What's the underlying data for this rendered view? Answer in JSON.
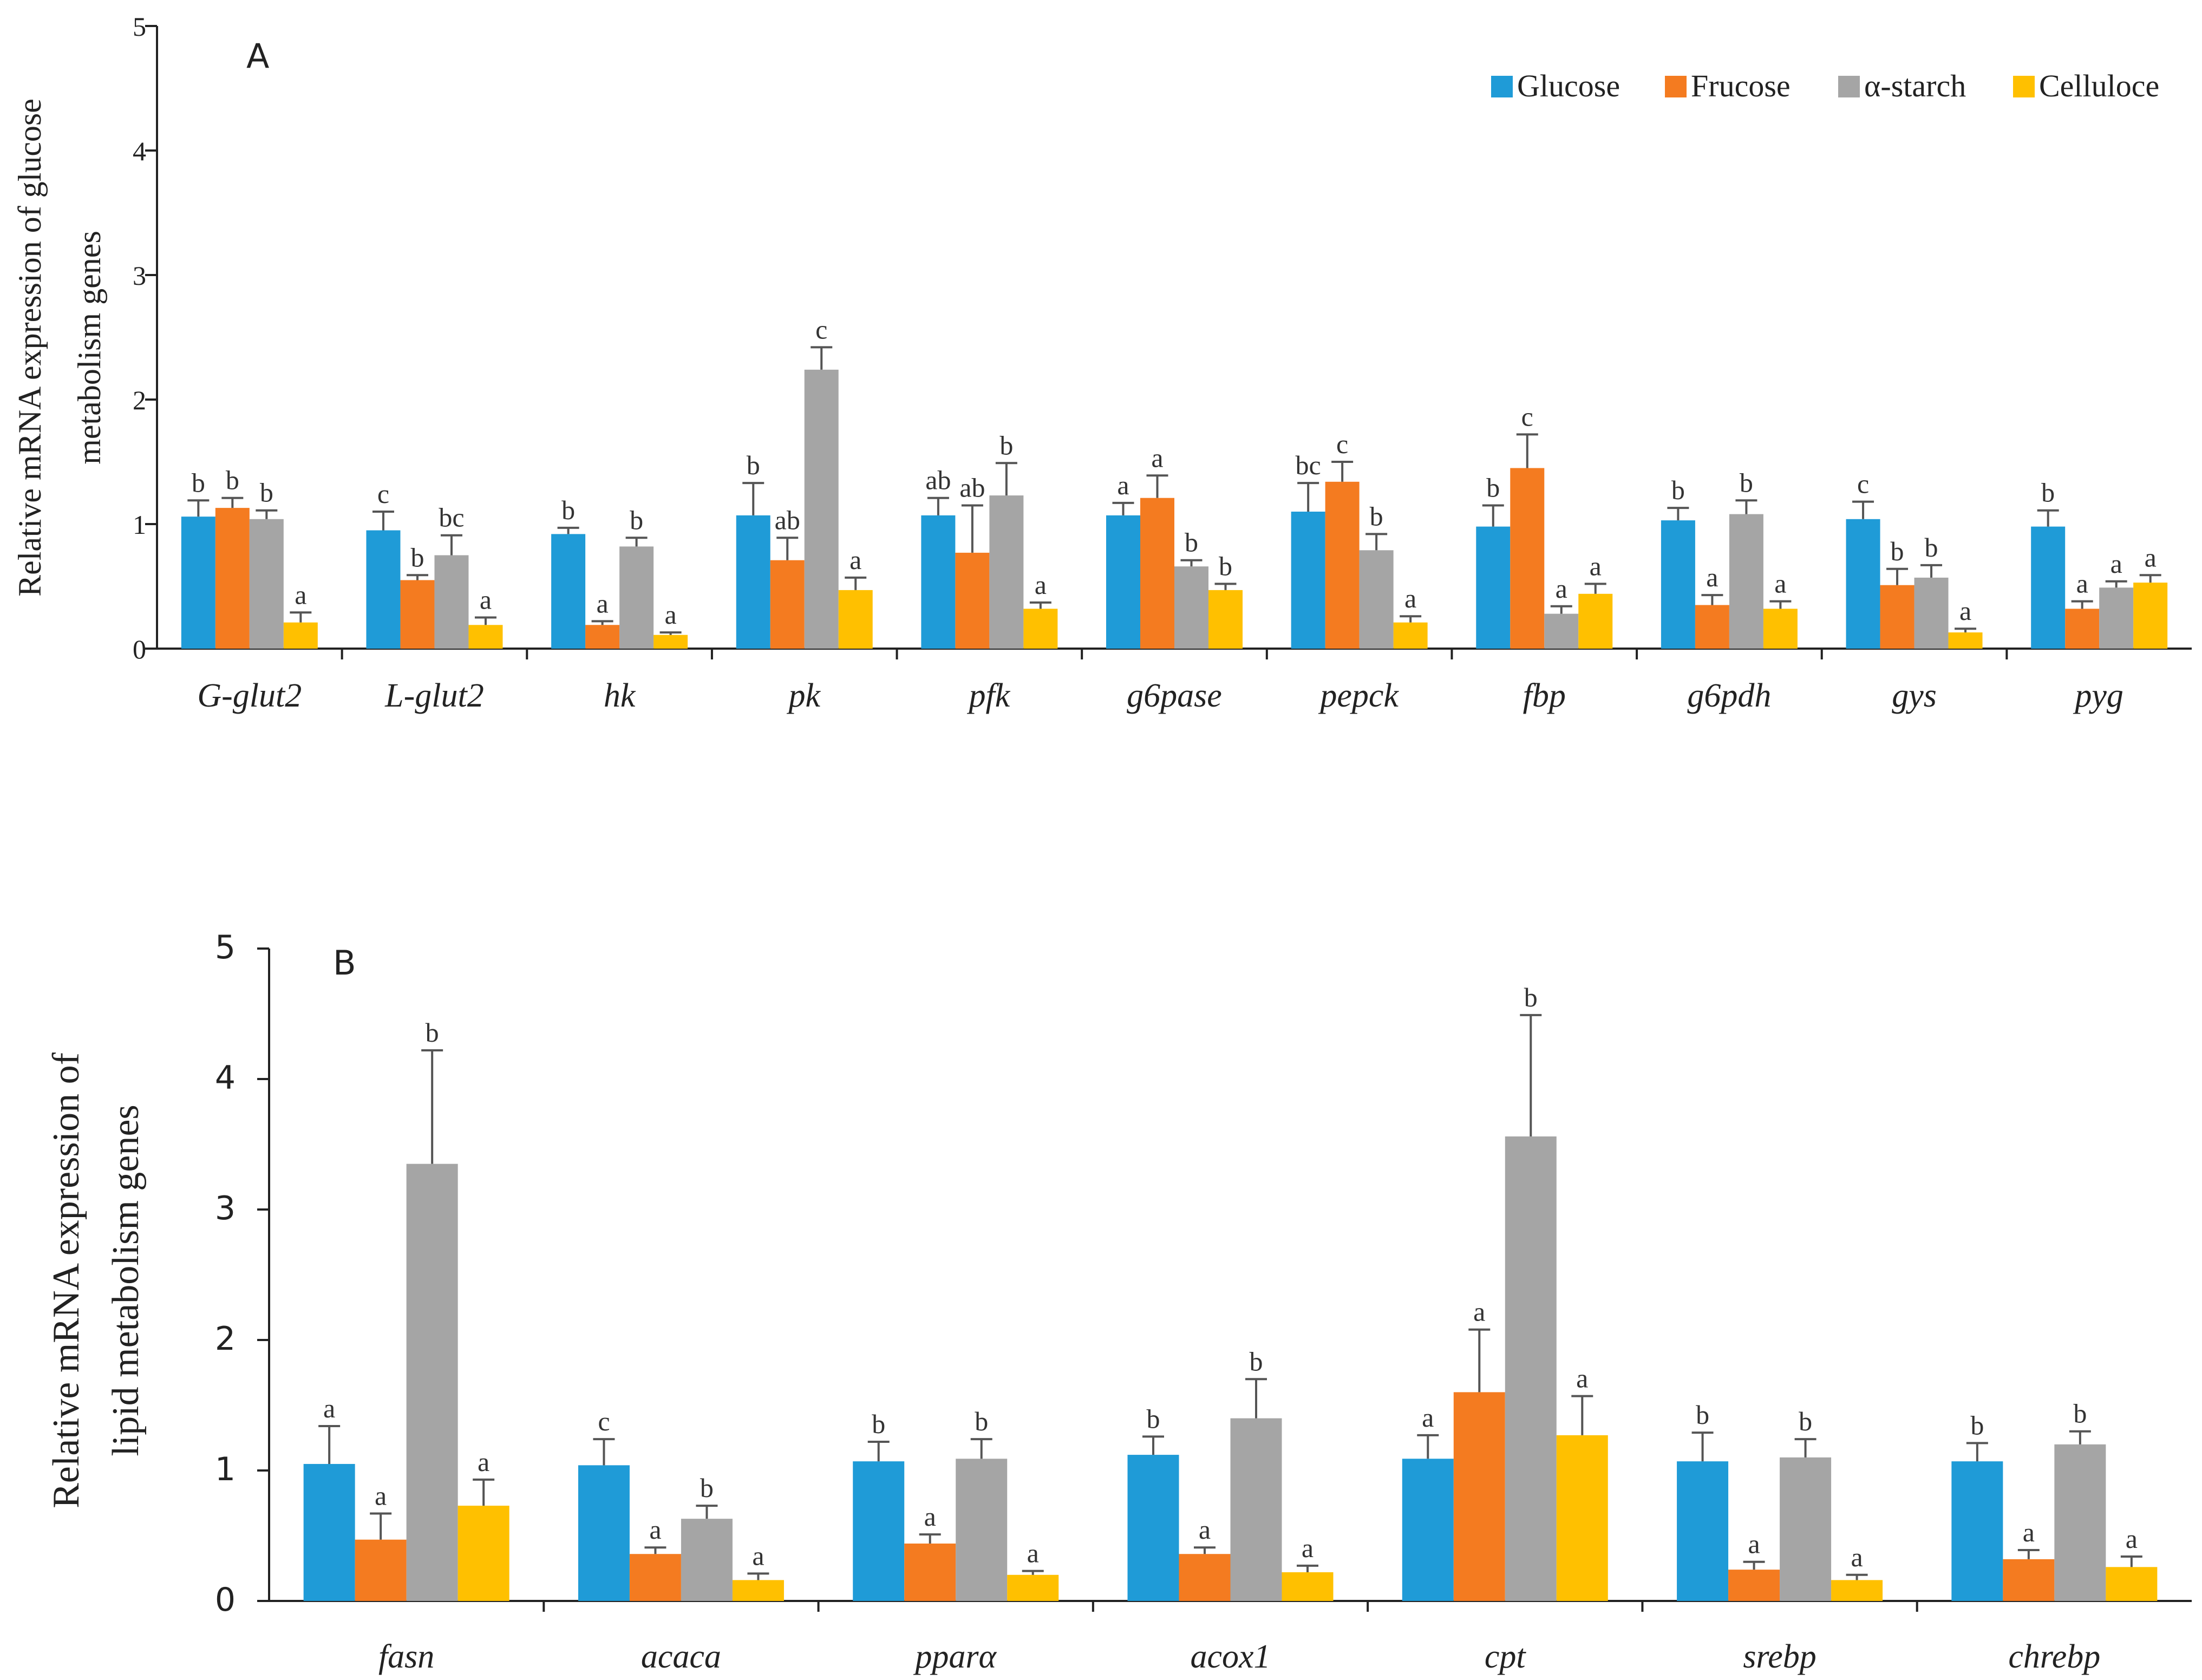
{
  "chart_data": [
    {
      "type": "bar",
      "panel_label": "A",
      "ylabel_lines": [
        "Relative mRNA expression of glucose",
        "metabolism genes"
      ],
      "ylim": [
        0,
        5
      ],
      "yticks": [
        "0",
        "1",
        "2",
        "3",
        "4",
        "5"
      ],
      "categories": [
        "G-glut2",
        "L-glut2",
        "hk",
        "pk",
        "pfk",
        "g6pase",
        "pepck",
        "fbp",
        "g6pdh",
        "gys",
        "pyg"
      ],
      "legend": [
        "Glucose",
        "Frucose",
        "α-starch",
        "Celluloce"
      ],
      "legend_position": "top-right",
      "series": [
        {
          "name": "Glucose",
          "color": "#1f9bd7",
          "values": [
            1.06,
            0.95,
            0.92,
            1.07,
            1.07,
            1.07,
            1.1,
            0.98,
            1.03,
            1.04,
            0.98
          ],
          "errors": [
            0.13,
            0.15,
            0.05,
            0.26,
            0.14,
            0.1,
            0.23,
            0.17,
            0.1,
            0.14,
            0.13
          ],
          "labels": [
            "b",
            "c",
            "b",
            "b",
            "ab",
            "a",
            "bc",
            "b",
            "b",
            "c",
            "b"
          ]
        },
        {
          "name": "Frucose",
          "color": "#f47b20",
          "values": [
            1.13,
            0.55,
            0.19,
            0.71,
            0.77,
            1.21,
            1.34,
            1.45,
            0.35,
            0.51,
            0.32
          ],
          "errors": [
            0.08,
            0.04,
            0.03,
            0.18,
            0.38,
            0.18,
            0.16,
            0.27,
            0.08,
            0.13,
            0.06
          ],
          "labels": [
            "b",
            "b",
            "a",
            "ab",
            "ab",
            "a",
            "c",
            "c",
            "a",
            "b",
            "a"
          ]
        },
        {
          "name": "α-starch",
          "color": "#a5a5a5",
          "values": [
            1.04,
            0.75,
            0.82,
            2.24,
            1.23,
            0.66,
            0.79,
            0.28,
            1.08,
            0.57,
            0.49
          ],
          "errors": [
            0.07,
            0.16,
            0.07,
            0.18,
            0.26,
            0.05,
            0.13,
            0.06,
            0.11,
            0.1,
            0.05
          ],
          "labels": [
            "b",
            "bc",
            "b",
            "c",
            "b",
            "b",
            "b",
            "a",
            "b",
            "b",
            "a"
          ]
        },
        {
          "name": "Celluloce",
          "color": "#ffc000",
          "values": [
            0.21,
            0.19,
            0.11,
            0.47,
            0.32,
            0.47,
            0.21,
            0.44,
            0.32,
            0.13,
            0.53
          ],
          "errors": [
            0.08,
            0.06,
            0.02,
            0.1,
            0.05,
            0.05,
            0.05,
            0.08,
            0.06,
            0.03,
            0.06
          ],
          "labels": [
            "a",
            "a",
            "a",
            "a",
            "a",
            "b",
            "a",
            "a",
            "a",
            "a",
            "a"
          ]
        }
      ]
    },
    {
      "type": "bar",
      "panel_label": "B",
      "ylabel_lines": [
        "Relative mRNA expression of",
        "lipid metabolism genes"
      ],
      "ylim": [
        0,
        5
      ],
      "yticks": [
        "0",
        "1",
        "2",
        "3",
        "4",
        "5"
      ],
      "categories": [
        "fasn",
        "acaca",
        "pparα",
        "acox1",
        "cpt",
        "srebp",
        "chrebp"
      ],
      "series": [
        {
          "name": "Glucose",
          "color": "#1f9bd7",
          "values": [
            1.05,
            1.04,
            1.07,
            1.12,
            1.09,
            1.07,
            1.07
          ],
          "errors": [
            0.29,
            0.2,
            0.15,
            0.14,
            0.18,
            0.22,
            0.14
          ],
          "labels": [
            "a",
            "c",
            "b",
            "b",
            "a",
            "b",
            "b"
          ]
        },
        {
          "name": "Frucose",
          "color": "#f47b20",
          "values": [
            0.47,
            0.36,
            0.44,
            0.36,
            1.6,
            0.24,
            0.32
          ],
          "errors": [
            0.2,
            0.05,
            0.07,
            0.05,
            0.48,
            0.06,
            0.07
          ],
          "labels": [
            "a",
            "a",
            "a",
            "a",
            "a",
            "a",
            "a"
          ]
        },
        {
          "name": "α-starch",
          "color": "#a5a5a5",
          "values": [
            3.35,
            0.63,
            1.09,
            1.4,
            3.56,
            1.1,
            1.2
          ],
          "errors": [
            0.87,
            0.1,
            0.15,
            0.3,
            0.93,
            0.14,
            0.1
          ],
          "labels": [
            "b",
            "b",
            "b",
            "b",
            "b",
            "b",
            "b"
          ]
        },
        {
          "name": "Celluloce",
          "color": "#ffc000",
          "values": [
            0.73,
            0.16,
            0.2,
            0.22,
            1.27,
            0.16,
            0.26
          ],
          "errors": [
            0.2,
            0.05,
            0.03,
            0.05,
            0.3,
            0.04,
            0.08
          ],
          "labels": [
            "a",
            "a",
            "a",
            "a",
            "a",
            "a",
            "a"
          ]
        }
      ]
    }
  ]
}
